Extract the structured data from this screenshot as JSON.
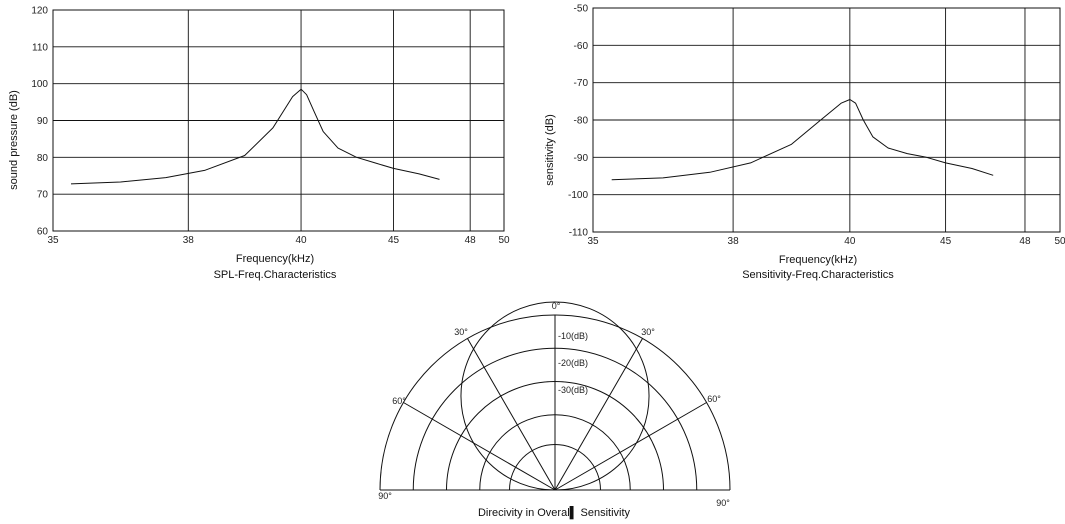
{
  "chart_data": [
    {
      "type": "line",
      "xlabel": "Frequency(kHz)",
      "caption": "SPL-Freq.Characteristics",
      "ylabel": "sound  pressure (dB)",
      "xticks": [
        "35",
        "38",
        "40",
        "45",
        "48",
        "50"
      ],
      "yticks": [
        60,
        70,
        80,
        90,
        100,
        110,
        120
      ],
      "ylim": [
        60,
        120
      ],
      "grid": true,
      "series": [
        {
          "x": [
            35.4,
            36.5,
            37.5,
            38.3,
            39.0,
            39.5,
            39.85,
            40.0,
            40.3,
            40.7,
            41.2,
            42.0,
            43.0,
            44.0,
            45.0,
            46.0,
            46.8
          ],
          "y": [
            72.8,
            73.3,
            74.5,
            76.5,
            80.5,
            88.0,
            96.5,
            98.5,
            97.0,
            92.5,
            87.0,
            82.5,
            80.0,
            78.5,
            77.0,
            75.5,
            74.0
          ]
        }
      ]
    },
    {
      "type": "line",
      "xlabel": "Frequency(kHz)",
      "caption": "Sensitivity-Freq.Characteristics",
      "ylabel": "sensitivity (dB)",
      "xticks": [
        "35",
        "38",
        "40",
        "45",
        "48",
        "50"
      ],
      "yticks": [
        -110,
        -100,
        -90,
        -80,
        -70,
        -60,
        -50
      ],
      "ylim": [
        -110,
        -50
      ],
      "grid": true,
      "series": [
        {
          "x": [
            35.4,
            36.5,
            37.5,
            38.3,
            39.0,
            39.5,
            39.85,
            40.0,
            40.3,
            40.7,
            41.2,
            42.0,
            43.0,
            44.0,
            45.0,
            46.0,
            46.8
          ],
          "y": [
            -96.0,
            -95.5,
            -94.0,
            -91.5,
            -86.5,
            -80.0,
            -75.5,
            -74.5,
            -75.5,
            -80.0,
            -84.5,
            -87.5,
            -89.0,
            -90.0,
            -91.5,
            -93.0,
            -94.8
          ]
        }
      ]
    }
  ],
  "polar": {
    "top_label": "0°",
    "angle_labels": [
      "30°",
      "30°",
      "60°",
      "60°",
      "90°",
      "90°"
    ],
    "ring_labels": [
      "-10(dB)",
      "-20(dB)",
      "-30(dB)"
    ],
    "caption": "Direcivity in Overal▌ Sensitivity"
  }
}
